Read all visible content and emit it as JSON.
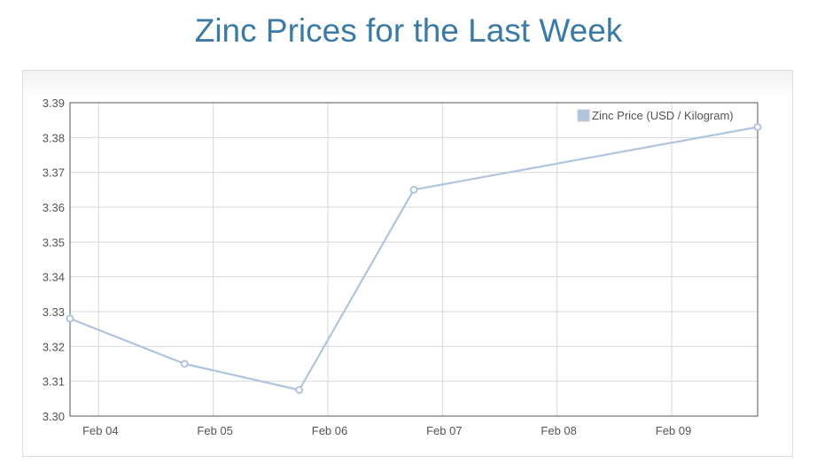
{
  "page": {
    "title": "Zinc Prices for the Last Week"
  },
  "colors": {
    "title": "#3a7aa5",
    "series": "#b0c4de",
    "grid": "#d9d9d9",
    "axis_text": "#545454",
    "plot_border": "#555555"
  },
  "chart_data": {
    "type": "line",
    "title": "",
    "xlabel": "",
    "ylabel": "",
    "x_ticks": [
      "Feb 04",
      "Feb 05",
      "Feb 06",
      "Feb 07",
      "Feb 08",
      "Feb 09"
    ],
    "y_ticks": [
      "3.39",
      "3.38",
      "3.37",
      "3.36",
      "3.35",
      "3.34",
      "3.33",
      "3.32",
      "3.31",
      "3.30"
    ],
    "ylim": [
      3.3,
      3.39
    ],
    "grid": true,
    "legend_position": "top-right",
    "series": [
      {
        "name": "Zinc Price (USD / Kilogram)",
        "color": "#b0c4de",
        "points": [
          {
            "x": "2015-02-03T18:00",
            "y": 3.328
          },
          {
            "x": "2015-02-04T18:00",
            "y": 3.315
          },
          {
            "x": "2015-02-05T18:00",
            "y": 3.3075
          },
          {
            "x": "2015-02-06T18:00",
            "y": 3.365
          },
          {
            "x": "2015-02-09T18:00",
            "y": 3.383
          }
        ]
      }
    ]
  }
}
